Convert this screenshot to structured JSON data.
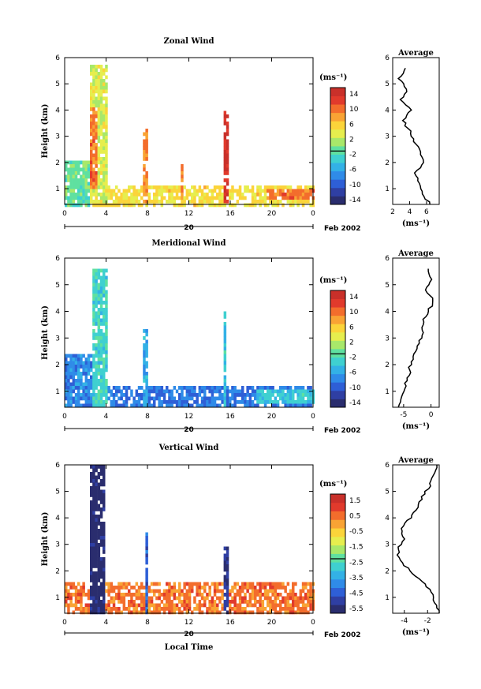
{
  "colors": {
    "colormap": [
      "#2a2d6e",
      "#2f3fa3",
      "#2e5fd6",
      "#2f8be8",
      "#33b1e6",
      "#3fd0d0",
      "#5fe0a0",
      "#a8e86a",
      "#e6ee4e",
      "#fbd43a",
      "#f9a334",
      "#f36d2c",
      "#e13a2c",
      "#c9302a"
    ],
    "line": "#000000"
  },
  "panels": [
    {
      "title": "Zonal Wind",
      "ylabel": "Height (km)",
      "yticks": [
        "1",
        "2",
        "3",
        "4",
        "5",
        "6"
      ],
      "xticks": [
        "0",
        "4",
        "8",
        "12",
        "16",
        "20",
        "0"
      ],
      "date_center": "20",
      "date_right": "Feb 2002",
      "unit": "(ms⁻¹)",
      "cbar_ticks": [
        "14",
        "10",
        "6",
        "2",
        "-2",
        "-6",
        "-10",
        "-14"
      ],
      "avg_title": "Average",
      "avg_xticks": [
        "2",
        "4",
        "6"
      ],
      "avg_xlabel": "(ms⁻¹)",
      "avg_yticks": [
        "1",
        "2",
        "3",
        "4",
        "5",
        "6"
      ]
    },
    {
      "title": "Meridional Wind",
      "ylabel": "Height (km)",
      "yticks": [
        "1",
        "2",
        "3",
        "4",
        "5",
        "6"
      ],
      "xticks": [
        "0",
        "4",
        "8",
        "12",
        "16",
        "20",
        "0"
      ],
      "date_center": "20",
      "date_right": "Feb 2002",
      "unit": "(ms⁻¹)",
      "cbar_ticks": [
        "14",
        "10",
        "6",
        "2",
        "-2",
        "-6",
        "-10",
        "-14"
      ],
      "avg_title": "Average",
      "avg_xticks": [
        "-5",
        "0"
      ],
      "avg_xlabel": "(ms⁻¹)",
      "avg_yticks": [
        "1",
        "2",
        "3",
        "4",
        "5",
        "6"
      ]
    },
    {
      "title": "Vertical Wind",
      "ylabel": "Height (km)",
      "yticks": [
        "1",
        "2",
        "3",
        "4",
        "5",
        "6"
      ],
      "xticks": [
        "0",
        "4",
        "8",
        "12",
        "16",
        "20",
        "0"
      ],
      "date_center": "20",
      "date_right": "Feb 2002",
      "unit": "(ms⁻¹)",
      "cbar_ticks": [
        "1.5",
        "0.5",
        "-0.5",
        "-1.5",
        "-2.5",
        "-3.5",
        "-4.5",
        "-5.5"
      ],
      "avg_title": "Average",
      "avg_xticks": [
        "-4",
        "-2"
      ],
      "avg_xlabel": "(ms⁻¹)",
      "avg_yticks": [
        "1",
        "2",
        "3",
        "4",
        "5",
        "6"
      ],
      "xlabel": "Local Time"
    }
  ],
  "chart_data": [
    {
      "type": "heatmap",
      "title": "Zonal Wind",
      "xlabel": "",
      "ylabel": "Height (km)",
      "x_range_hours": [
        0,
        24
      ],
      "y_range_km": [
        0.4,
        6.0
      ],
      "color_range": [
        -16,
        16
      ],
      "background_value": 5,
      "features": [
        {
          "x0": 0.0,
          "x1": 2.2,
          "y0": 0.4,
          "y1": 2.2,
          "value": -1
        },
        {
          "x0": 2.3,
          "x1": 4.0,
          "y0": 0.5,
          "y1": 5.8,
          "value": 3
        },
        {
          "x0": 2.4,
          "x1": 3.0,
          "y0": 1.0,
          "y1": 4.2,
          "value": 10
        },
        {
          "x0": 7.5,
          "x1": 8.0,
          "y0": 0.5,
          "y1": 3.3,
          "value": 9
        },
        {
          "x0": 11.0,
          "x1": 11.3,
          "y0": 0.6,
          "y1": 2.2,
          "value": 10
        },
        {
          "x0": 15.3,
          "x1": 15.7,
          "y0": 0.5,
          "y1": 4.0,
          "value": 14
        },
        {
          "x0": 19.5,
          "x1": 24.0,
          "y0": 0.6,
          "y1": 1.1,
          "value": 10
        }
      ],
      "profile": {
        "height_km": [
          0.4,
          0.8,
          1.2,
          1.6,
          2.0,
          2.4,
          2.8,
          3.2,
          3.6,
          4.0,
          4.4,
          4.8,
          5.2,
          5.6
        ],
        "value": [
          6.5,
          5.5,
          5.0,
          4.7,
          5.6,
          5.2,
          4.6,
          4.0,
          3.2,
          4.2,
          3.0,
          3.7,
          2.8,
          3.5
        ]
      },
      "profile_xlim": [
        2,
        7.5
      ]
    },
    {
      "type": "heatmap",
      "title": "Meridional Wind",
      "xlabel": "",
      "ylabel": "Height (km)",
      "x_range_hours": [
        0,
        24
      ],
      "y_range_km": [
        0.4,
        6.0
      ],
      "color_range": [
        -16,
        16
      ],
      "background_value": -9,
      "features": [
        {
          "x0": 0.0,
          "x1": 2.5,
          "y0": 0.5,
          "y1": 2.5,
          "value": -8
        },
        {
          "x0": 2.5,
          "x1": 4.0,
          "y0": 0.5,
          "y1": 5.7,
          "value": -3
        },
        {
          "x0": 7.5,
          "x1": 8.0,
          "y0": 0.5,
          "y1": 3.4,
          "value": -6
        },
        {
          "x0": 15.2,
          "x1": 15.6,
          "y0": 0.5,
          "y1": 4.0,
          "value": -4
        },
        {
          "x0": 18.5,
          "x1": 24.0,
          "y0": 0.6,
          "y1": 1.1,
          "value": -4
        }
      ],
      "profile": {
        "height_km": [
          0.4,
          0.8,
          1.2,
          1.6,
          2.0,
          2.4,
          2.8,
          3.2,
          3.6,
          4.0,
          4.4,
          4.8,
          5.2,
          5.6
        ],
        "value": [
          -6.0,
          -5.5,
          -4.8,
          -4.0,
          -3.8,
          -3.0,
          -2.2,
          -1.5,
          -1.5,
          -0.5,
          0.5,
          -0.8,
          0.2,
          -0.5
        ]
      },
      "profile_xlim": [
        -7,
        1.5
      ]
    },
    {
      "type": "heatmap",
      "title": "Vertical Wind",
      "xlabel": "Local Time",
      "ylabel": "Height (km)",
      "x_range_hours": [
        0,
        24
      ],
      "y_range_km": [
        0.4,
        6.0
      ],
      "color_range": [
        -6,
        2
      ],
      "background_value": 0.5,
      "features": [
        {
          "x0": 2.2,
          "x1": 3.8,
          "y0": 0.4,
          "y1": 6.0,
          "value": -5.8
        },
        {
          "x0": 7.6,
          "x1": 7.9,
          "y0": 0.5,
          "y1": 3.5,
          "value": -4.5
        },
        {
          "x0": 15.2,
          "x1": 15.7,
          "y0": 0.5,
          "y1": 3.0,
          "value": -5.5
        }
      ],
      "profile": {
        "height_km": [
          0.4,
          0.8,
          1.2,
          1.6,
          2.0,
          2.4,
          2.8,
          3.2,
          3.6,
          4.0,
          4.4,
          4.8,
          5.2,
          5.6,
          6.0
        ],
        "value": [
          -1.0,
          -1.4,
          -1.6,
          -2.5,
          -3.5,
          -4.4,
          -4.6,
          -4.0,
          -4.2,
          -3.5,
          -2.8,
          -2.5,
          -1.8,
          -1.5,
          -1.2
        ]
      },
      "profile_xlim": [
        -5,
        -1
      ]
    }
  ]
}
